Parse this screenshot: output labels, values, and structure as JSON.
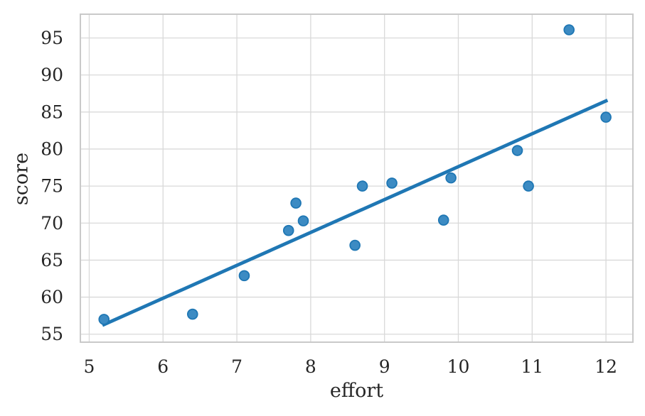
{
  "chart_data": {
    "type": "scatter",
    "title": "",
    "xlabel": "effort",
    "ylabel": "score",
    "points": [
      {
        "effort": 5.2,
        "score": 57.0
      },
      {
        "effort": 6.4,
        "score": 57.7
      },
      {
        "effort": 7.1,
        "score": 62.9
      },
      {
        "effort": 7.7,
        "score": 69.0
      },
      {
        "effort": 7.8,
        "score": 72.7
      },
      {
        "effort": 7.9,
        "score": 70.3
      },
      {
        "effort": 8.6,
        "score": 67.0
      },
      {
        "effort": 8.7,
        "score": 75.0
      },
      {
        "effort": 9.1,
        "score": 75.4
      },
      {
        "effort": 9.8,
        "score": 70.4
      },
      {
        "effort": 9.9,
        "score": 76.1
      },
      {
        "effort": 10.8,
        "score": 79.8
      },
      {
        "effort": 10.95,
        "score": 75.0
      },
      {
        "effort": 11.5,
        "score": 96.1
      },
      {
        "effort": 12.0,
        "score": 84.3
      }
    ],
    "regression_line": {
      "x_start": 5.2,
      "y_start": 56.3,
      "x_end": 12.0,
      "y_end": 86.5
    },
    "xticks": [
      5,
      6,
      7,
      8,
      9,
      10,
      11,
      12
    ],
    "yticks": [
      55,
      60,
      65,
      70,
      75,
      80,
      85,
      90,
      95
    ],
    "xlim": [
      4.88,
      12.365
    ],
    "ylim": [
      53.92,
      98.21
    ],
    "grid": true,
    "legend": "none",
    "colors": {
      "line": "#1f77b4",
      "marker_fill": "#3c8bc3",
      "marker_edge": "#1f77b4",
      "grid": "#d9d9d9",
      "spine": "#c9c9c9",
      "text": "#262626",
      "background": "#ffffff"
    }
  }
}
